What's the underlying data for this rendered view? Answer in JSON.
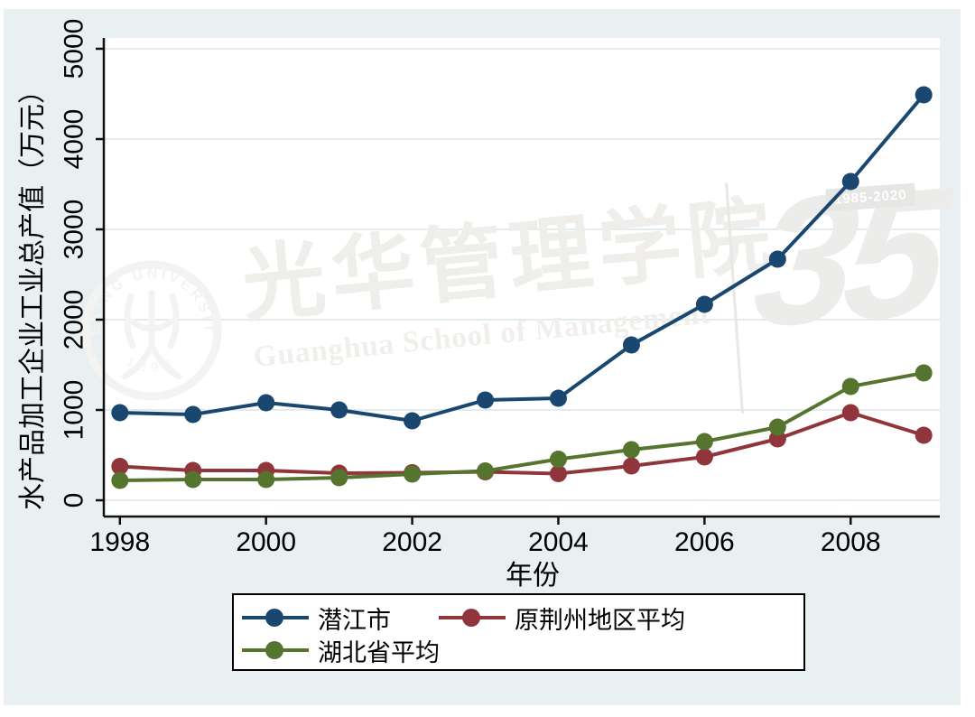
{
  "figure": {
    "background_color": "#e9f0f2",
    "plot_background": "#ffffff",
    "grid_color": "#e2ecef",
    "axis_color": "#111111"
  },
  "chart_data": {
    "type": "line",
    "title": "",
    "xlabel": "年份",
    "ylabel": "水产品加工企业工业总产值（万元）",
    "x": [
      1998,
      1999,
      2000,
      2001,
      2002,
      2003,
      2004,
      2005,
      2006,
      2007,
      2008,
      2009
    ],
    "x_tick_values": [
      1998,
      2000,
      2002,
      2004,
      2006,
      2008
    ],
    "x_tick_labels": [
      "1998",
      "2000",
      "2002",
      "2004",
      "2006",
      "2008"
    ],
    "y_tick_values": [
      0,
      1000,
      2000,
      3000,
      4000,
      5000
    ],
    "y_tick_labels": [
      "0",
      "1000",
      "2000",
      "3000",
      "4000",
      "5000"
    ],
    "xlim": [
      1997.78,
      2009.22
    ],
    "ylim": [
      -180,
      5120
    ],
    "grid": "horizontal",
    "legend_position": "bottom",
    "series": [
      {
        "name": "潜江市",
        "color": "#1a476f",
        "values": [
          970,
          950,
          1080,
          1000,
          880,
          1110,
          1130,
          1720,
          2170,
          2670,
          3530,
          4490
        ]
      },
      {
        "name": "原荆州地区平均",
        "color": "#90353b",
        "values": [
          375,
          330,
          330,
          300,
          305,
          315,
          295,
          380,
          480,
          680,
          970,
          720
        ]
      },
      {
        "name": "湖北省平均",
        "color": "#55752f",
        "values": [
          220,
          230,
          230,
          250,
          290,
          325,
          455,
          560,
          650,
          810,
          1260,
          1410
        ]
      }
    ]
  },
  "legend": {
    "items": [
      {
        "label": "潜江市",
        "color": "#1a476f"
      },
      {
        "label": "原荆州地区平均",
        "color": "#90353b"
      },
      {
        "label": "湖北省平均",
        "color": "#55752f"
      }
    ]
  },
  "watermark": {
    "ring_text": "PEKING UNIVERSITY",
    "seal_year": "1898",
    "calligraphy": "光华管理学院",
    "english_line": "Guanghua School of Management",
    "anniversary_numeral": "35",
    "anniversary_years": "1985-2020"
  }
}
